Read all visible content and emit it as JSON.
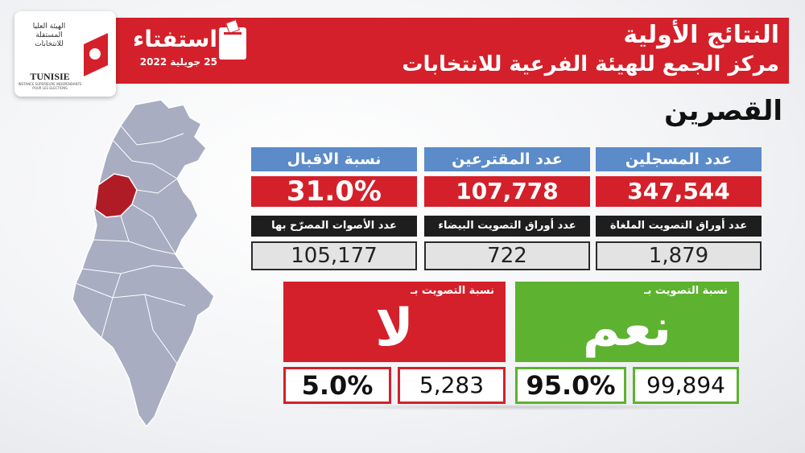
{
  "header": {
    "title": "النتائج الأولية",
    "subtitle": "مركز الجمع للهيئة الفرعية للانتخابات",
    "brand_word": "استفتاء",
    "brand_date": "25 جويلية 2022",
    "logo_arabic": "الهيئة العليا المستقلة للانتخابات",
    "logo_latin": "TUNISIE",
    "logo_french": "INSTANCE SUPERIEURE INDEPENDANTE POUR LES ELECTIONS"
  },
  "region": "القصرين",
  "stats": {
    "registered": {
      "label": "عدد المسجلين",
      "value": "347,544"
    },
    "voters": {
      "label": "عدد المقترعين",
      "value": "107,778"
    },
    "turnout": {
      "label": "نسبة الاقبال",
      "value": "31.0%"
    }
  },
  "ballots": {
    "cancelled": {
      "label": "عدد أوراق التصويت الملغاة",
      "value": "1,879"
    },
    "blank": {
      "label": "عدد أوراق التصويت البيضاء",
      "value": "722"
    },
    "valid": {
      "label": "عدد الأصوات المصرّح بها",
      "value": "105,177"
    }
  },
  "vote": {
    "yes": {
      "caption": "نسبة التصويت بـ",
      "word": "نعم",
      "percent": "95.0%",
      "count": "99,894"
    },
    "no": {
      "caption": "نسبة التصويت بـ",
      "word": "لا",
      "percent": "5.0%",
      "count": "5,283"
    }
  },
  "colors": {
    "red": "#d4202a",
    "green": "#5db22f",
    "blue": "#5b8bc8",
    "dark": "#1e1e1e",
    "map_base": "#a9adc2",
    "map_highlight": "#b01c26"
  }
}
